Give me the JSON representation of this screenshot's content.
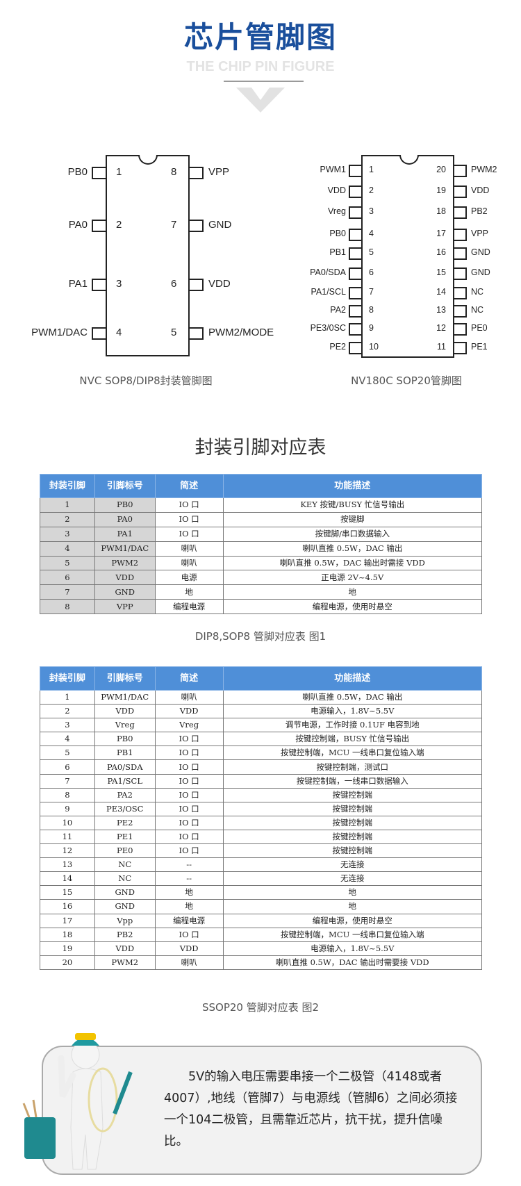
{
  "header": {
    "title": "芯片管脚图",
    "subtitle": "THE CHIP PIN FIGURE"
  },
  "chip8": {
    "caption": "NVC SOP8/DIP8封装管脚图",
    "left": [
      {
        "num": "1",
        "label": "PB0"
      },
      {
        "num": "2",
        "label": "PA0"
      },
      {
        "num": "3",
        "label": "PA1"
      },
      {
        "num": "4",
        "label": "PWM1/DAC"
      }
    ],
    "right": [
      {
        "num": "8",
        "label": "VPP"
      },
      {
        "num": "7",
        "label": "GND"
      },
      {
        "num": "6",
        "label": "VDD"
      },
      {
        "num": "5",
        "label": "PWM2/MODE"
      }
    ]
  },
  "chip20": {
    "caption": "NV180C   SOP20管脚图",
    "left": [
      {
        "num": "1",
        "label": "PWM1"
      },
      {
        "num": "2",
        "label": "VDD"
      },
      {
        "num": "3",
        "label": "Vreg"
      },
      {
        "num": "4",
        "label": "PB0"
      },
      {
        "num": "5",
        "label": "PB1"
      },
      {
        "num": "6",
        "label": "PA0/SDA"
      },
      {
        "num": "7",
        "label": "PA1/SCL"
      },
      {
        "num": "8",
        "label": "PA2"
      },
      {
        "num": "9",
        "label": "PE3/0SC"
      },
      {
        "num": "10",
        "label": "PE2"
      }
    ],
    "right": [
      {
        "num": "20",
        "label": "PWM2"
      },
      {
        "num": "19",
        "label": "VDD"
      },
      {
        "num": "18",
        "label": "PB2"
      },
      {
        "num": "17",
        "label": "VPP"
      },
      {
        "num": "16",
        "label": "GND"
      },
      {
        "num": "15",
        "label": "GND"
      },
      {
        "num": "14",
        "label": "NC"
      },
      {
        "num": "13",
        "label": "NC"
      },
      {
        "num": "12",
        "label": "PE0"
      },
      {
        "num": "11",
        "label": "PE1"
      }
    ]
  },
  "section_title": "封装引脚对应表",
  "table_headers": [
    "封装引脚",
    "引脚标号",
    "简述",
    "功能描述"
  ],
  "table1": {
    "caption": "DIP8,SOP8 管脚对应表  图1",
    "rows": [
      [
        "1",
        "PB0",
        "IO 口",
        "KEY 按键/BUSY 忙信号输出"
      ],
      [
        "2",
        "PA0",
        "IO 口",
        "按键脚"
      ],
      [
        "3",
        "PA1",
        "IO 口",
        "按键脚/串口数据输入"
      ],
      [
        "4",
        "PWM1/DAC",
        "喇叭",
        "喇叭直推 0.5W，DAC 输出"
      ],
      [
        "5",
        "PWM2",
        "喇叭",
        "喇叭直推 0.5W，DAC 输出时需接 VDD"
      ],
      [
        "6",
        "VDD",
        "电源",
        "正电源 2V~4.5V"
      ],
      [
        "7",
        "GND",
        "地",
        "地"
      ],
      [
        "8",
        "VPP",
        "编程电源",
        "编程电源，使用时悬空"
      ]
    ]
  },
  "table2": {
    "caption": "SSOP20 管脚对应表  图2",
    "rows": [
      [
        "1",
        "PWM1/DAC",
        "喇叭",
        "喇叭直推 0.5W，DAC 输出"
      ],
      [
        "2",
        "VDD",
        "VDD",
        "电源输入，1.8V~5.5V"
      ],
      [
        "3",
        "Vreg",
        "Vreg",
        "调节电源，工作时接 0.1UF 电容到地"
      ],
      [
        "4",
        "PB0",
        "IO 口",
        "按键控制端，BUSY 忙信号输出"
      ],
      [
        "5",
        "PB1",
        "IO 口",
        "按键控制端，MCU 一线串口复位输入端"
      ],
      [
        "6",
        "PA0/SDA",
        "IO 口",
        "按键控制端，测试口"
      ],
      [
        "7",
        "PA1/SCL",
        "IO 口",
        "按键控制端，一线串口数据输入"
      ],
      [
        "8",
        "PA2",
        "IO 口",
        "按键控制端"
      ],
      [
        "9",
        "PE3/OSC",
        "IO 口",
        "按键控制端"
      ],
      [
        "10",
        "PE2",
        "IO 口",
        "按键控制端"
      ],
      [
        "11",
        "PE1",
        "IO 口",
        "按键控制端"
      ],
      [
        "12",
        "PE0",
        "IO 口",
        "按键控制端"
      ],
      [
        "13",
        "NC",
        "--",
        "无连接"
      ],
      [
        "14",
        "NC",
        "--",
        "无连接"
      ],
      [
        "15",
        "GND",
        "地",
        "地"
      ],
      [
        "16",
        "GND",
        "地",
        "地"
      ],
      [
        "17",
        "Vpp",
        "编程电源",
        "编程电源，使用时悬空"
      ],
      [
        "18",
        "PB2",
        "IO 口",
        "按键控制端，MCU 一线串口复位输入端"
      ],
      [
        "19",
        "VDD",
        "VDD",
        "电源输入，1.8V~5.5V"
      ],
      [
        "20",
        "PWM2",
        "喇叭",
        "喇叭直推 0.5W，DAC 输出时需要接 VDD"
      ]
    ]
  },
  "note": {
    "text": "　　5V的输入电压需要串接一个二极管（4148或者4007）,地线（管脚7）与电源线（管脚6）之间必须接一个104二极管，且需靠近芯片，抗干扰，提升信噪比。"
  },
  "colors": {
    "title": "#1a4f9c",
    "table_header": "#4f8fd8"
  }
}
